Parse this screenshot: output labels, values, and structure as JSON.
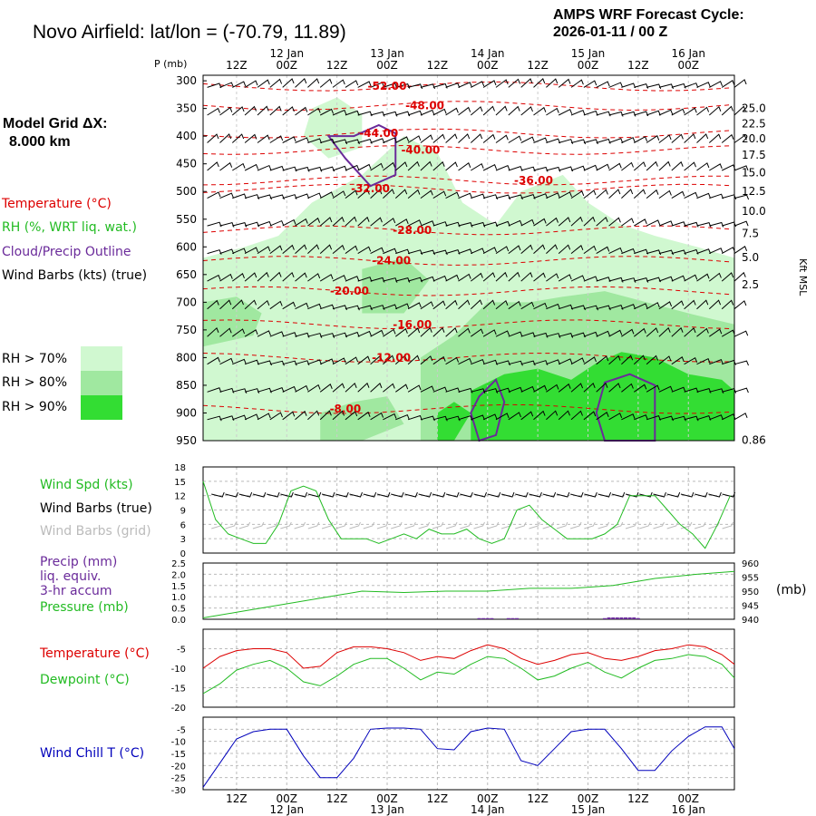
{
  "header": {
    "title": "Novo Airfield:  lat/lon = (-70.79,  11.89)",
    "cycle_line1": "AMPS WRF Forecast Cycle:",
    "cycle_line2": "2026-01-11 / 00  Z"
  },
  "model_grid": {
    "label": "Model Grid ΔX:",
    "value": "8.000 km"
  },
  "legend_main": {
    "temperature": "Temperature (°C)",
    "rh": "RH (%, WRT liq. wat.)",
    "cloud": "Cloud/Precip Outline",
    "barbs": "Wind Barbs (kts) (true)",
    "colors": {
      "temperature": "#dd0000",
      "rh": "#22bb22",
      "cloud": "#6a2a9a",
      "barbs": "#000000"
    }
  },
  "rh_legend": [
    {
      "label": "RH > 70%",
      "color": "#d0f8d0"
    },
    {
      "label": "RH > 80%",
      "color": "#a0e8a0"
    },
    {
      "label": "RH > 90%",
      "color": "#33dd33"
    }
  ],
  "time_axis": {
    "hour_labels": [
      "12Z",
      "00Z",
      "12Z",
      "00Z",
      "12Z",
      "00Z",
      "12Z",
      "00Z",
      "12Z",
      "00Z"
    ],
    "date_labels": [
      "12 Jan",
      "13 Jan",
      "14 Jan",
      "15 Jan",
      "16 Jan"
    ]
  },
  "chart_data": [
    {
      "type": "heatmap",
      "title": "",
      "left_axis_title": "P (mb)",
      "right_axis_title": "Kft MSL",
      "pressure_ticks": [
        "300",
        "350",
        "400",
        "450",
        "500",
        "550",
        "600",
        "650",
        "700",
        "750",
        "800",
        "850",
        "900",
        "950"
      ],
      "ylim": [
        950,
        290
      ],
      "height_ticks": [
        "25.0",
        "22.5",
        "20.0",
        "17.5",
        "15.0",
        "12.5",
        "10.0",
        "7.5",
        "5.0",
        "2.5",
        "0.86"
      ],
      "height_tick_pressures": [
        350,
        378,
        405,
        434,
        466,
        500,
        536,
        576,
        619,
        668,
        949
      ],
      "x_range_hours": [
        -8,
        119
      ],
      "isotherm_labels": [
        {
          "value": "-52.00",
          "hour": 36,
          "p": 310
        },
        {
          "value": "-48.00",
          "hour": 45,
          "p": 345
        },
        {
          "value": "-44.00",
          "hour": 34,
          "p": 395
        },
        {
          "value": "-40.00",
          "hour": 44,
          "p": 425
        },
        {
          "value": "-36.00",
          "hour": 71,
          "p": 480
        },
        {
          "value": "-32.00",
          "hour": 32,
          "p": 495
        },
        {
          "value": "-28.00",
          "hour": 42,
          "p": 570
        },
        {
          "value": "-24.00",
          "hour": 37,
          "p": 625
        },
        {
          "value": "-20.00",
          "hour": 27,
          "p": 680
        },
        {
          "value": "-16.00",
          "hour": 42,
          "p": 740
        },
        {
          "value": "-12.00",
          "hour": 37,
          "p": 800
        },
        {
          "value": "-8.00",
          "hour": 26,
          "p": 893
        }
      ]
    },
    {
      "type": "line",
      "series": [
        {
          "name": "Wind Spd (kts)",
          "color": "#22bb22",
          "x": [
            -8,
            -5,
            -2,
            1,
            4,
            7,
            10,
            13,
            16,
            19,
            22,
            25,
            28,
            31,
            34,
            37,
            40,
            43,
            46,
            49,
            52,
            55,
            58,
            61,
            64,
            67,
            70,
            73,
            76,
            79,
            82,
            85,
            88,
            91,
            94,
            97,
            100,
            103,
            106,
            109,
            112,
            115,
            118
          ],
          "values": [
            15,
            7,
            4,
            3,
            2,
            2,
            6,
            13,
            14,
            13,
            7,
            3,
            3,
            3,
            2,
            3,
            4,
            3,
            5,
            4,
            4,
            5,
            3,
            2,
            3,
            9,
            10,
            7,
            5,
            3,
            3,
            3,
            4,
            6,
            12,
            12,
            12,
            9,
            6,
            4,
            1,
            6,
            12
          ]
        }
      ],
      "labels": {
        "spd": "Wind Spd (kts)",
        "barbs_true": "Wind Barbs (true)",
        "barbs_grid": "Wind Barbs (grid)"
      },
      "ylim": [
        0,
        18
      ],
      "y_ticks": [
        "0",
        "3",
        "6",
        "9",
        "12",
        "15",
        "18"
      ]
    },
    {
      "type": "line",
      "series": [
        {
          "name": "Pressure (mb)",
          "color": "#22bb22",
          "x": [
            -8,
            0,
            10,
            20,
            30,
            40,
            50,
            60,
            70,
            80,
            90,
            100,
            110,
            119
          ],
          "values": [
            940.5,
            942.5,
            945,
            947.5,
            950,
            949.5,
            950,
            950,
            951,
            951,
            952,
            954.5,
            956,
            957
          ]
        },
        {
          "name": "Precip (mm)",
          "color": "#6a2a9a",
          "x": [
            58,
            59,
            60,
            61,
            65,
            66,
            67,
            88,
            89,
            90,
            91,
            92,
            93,
            94,
            95,
            96
          ],
          "values": [
            0.05,
            0.05,
            0.05,
            0.05,
            0.05,
            0.05,
            0.05,
            0.05,
            0.08,
            0.08,
            0.08,
            0.08,
            0.08,
            0.08,
            0.08,
            0.05
          ]
        }
      ],
      "labels": {
        "precip": "Precip (mm)",
        "liq": "liq. equiv.",
        "accum": "3-hr accum",
        "pressure": "Pressure (mb)",
        "right_unit": "(mb)"
      },
      "ylim_precip": [
        0,
        2.5
      ],
      "y_ticks_precip": [
        "0.0",
        "0.5",
        "1.0",
        "1.5",
        "2.0",
        "2.5"
      ],
      "ylim_pressure": [
        940,
        960
      ],
      "y_ticks_pressure": [
        "940",
        "945",
        "950",
        "955",
        "960"
      ]
    },
    {
      "type": "line",
      "series": [
        {
          "name": "Temperature (°C)",
          "color": "#dd0000",
          "x": [
            -8,
            -4,
            0,
            4,
            8,
            12,
            16,
            20,
            24,
            28,
            32,
            36,
            40,
            44,
            48,
            52,
            56,
            60,
            64,
            68,
            72,
            76,
            80,
            84,
            88,
            92,
            96,
            100,
            104,
            108,
            112,
            116,
            119
          ],
          "values": [
            -10,
            -7,
            -5.5,
            -5,
            -5,
            -6,
            -10,
            -9.5,
            -6,
            -4.5,
            -4.5,
            -5,
            -6,
            -8,
            -7,
            -7.5,
            -5.5,
            -4,
            -5,
            -7.5,
            -9,
            -8,
            -6.5,
            -6,
            -7.5,
            -8,
            -7,
            -5.5,
            -5,
            -4,
            -4.5,
            -6.5,
            -9
          ]
        },
        {
          "name": "Dewpoint (°C)",
          "color": "#22bb22",
          "x": [
            -8,
            -4,
            0,
            4,
            8,
            12,
            16,
            20,
            24,
            28,
            32,
            36,
            40,
            44,
            48,
            52,
            56,
            60,
            64,
            68,
            72,
            76,
            80,
            84,
            88,
            92,
            96,
            100,
            104,
            108,
            112,
            116,
            119
          ],
          "values": [
            -16.5,
            -14,
            -10.5,
            -9,
            -8,
            -10,
            -13.5,
            -14.5,
            -12,
            -9,
            -7.5,
            -7.5,
            -10,
            -13,
            -11,
            -11.5,
            -9,
            -7,
            -7.5,
            -10,
            -13,
            -12,
            -10,
            -8.5,
            -11,
            -12.5,
            -10,
            -8,
            -7.5,
            -6.5,
            -7,
            -9,
            -12.5
          ]
        }
      ],
      "ylim": [
        -20,
        0
      ],
      "y_ticks": [
        "-5",
        "-10",
        "-15",
        "-20"
      ]
    },
    {
      "type": "line",
      "series": [
        {
          "name": "Wind Chill T (°C)",
          "color": "#0000bb",
          "x": [
            -8,
            -4,
            0,
            4,
            8,
            12,
            16,
            20,
            24,
            28,
            32,
            36,
            40,
            44,
            48,
            52,
            56,
            60,
            64,
            68,
            72,
            76,
            80,
            84,
            88,
            92,
            96,
            100,
            104,
            108,
            112,
            116,
            119
          ],
          "values": [
            -29,
            -19,
            -9,
            -6,
            -5,
            -5,
            -16,
            -25,
            -25,
            -17,
            -5,
            -4.5,
            -4.5,
            -5,
            -13,
            -13.5,
            -6,
            -4.5,
            -5,
            -18,
            -20,
            -13,
            -6,
            -5,
            -5,
            -13,
            -22,
            -22,
            -14,
            -8,
            -4,
            -4,
            -13
          ]
        }
      ],
      "label": "Wind Chill T (°C)",
      "ylim": [
        -30,
        0
      ],
      "y_ticks": [
        "-5",
        "-10",
        "-15",
        "-20",
        "-25",
        "-30"
      ]
    }
  ]
}
